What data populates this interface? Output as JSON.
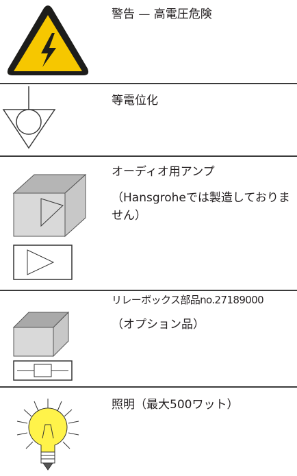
{
  "rows": [
    {
      "texts": [
        "警告 — 高電圧危険"
      ]
    },
    {
      "texts": [
        "等電位化"
      ]
    },
    {
      "texts": [
        "オーディオ用アンプ",
        "（Hansgroheでは製造しておりません）"
      ]
    },
    {
      "texts": [
        "リレーボックス部品no.27189000",
        "（オプション品）"
      ]
    },
    {
      "texts": [
        "照明（最大500ワット）"
      ]
    }
  ]
}
